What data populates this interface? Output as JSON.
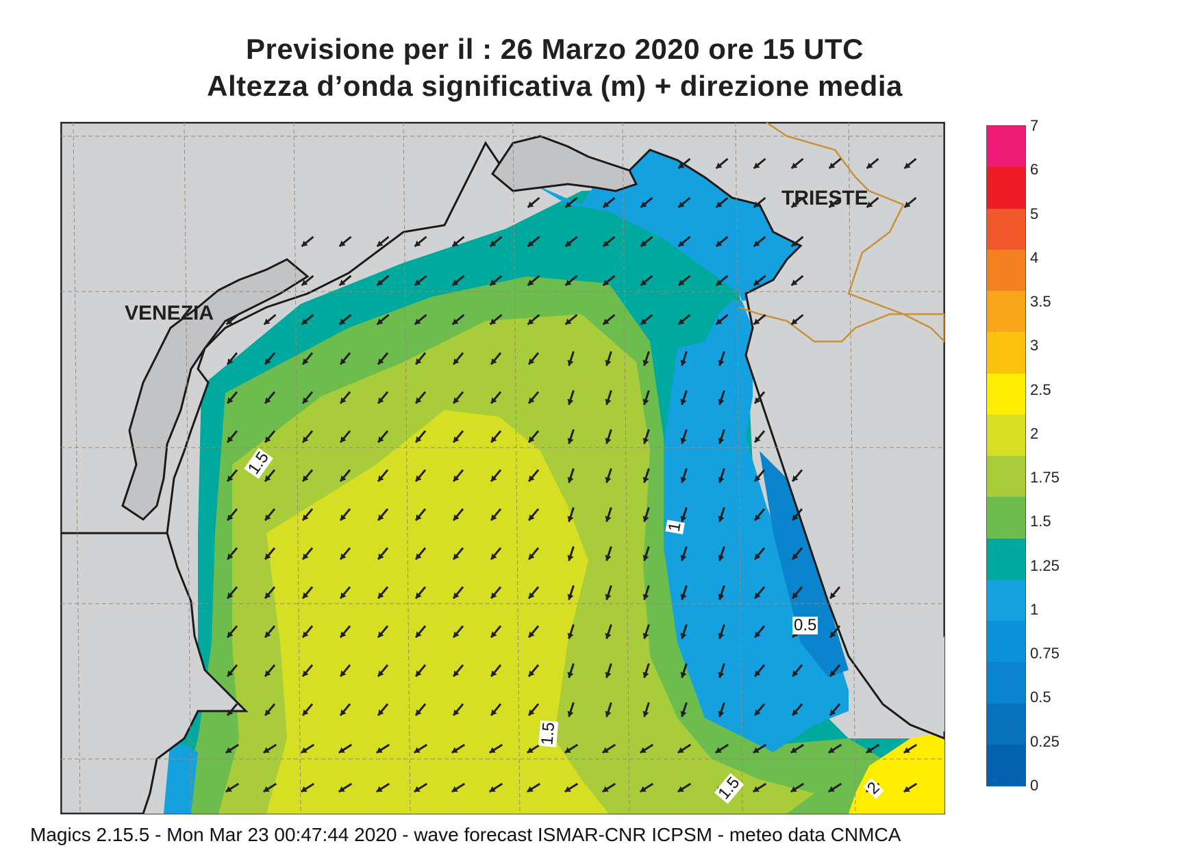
{
  "title": {
    "line1": "Previsione per il  :  26   Marzo   2020   ore 15 UTC",
    "line2": "Altezza d’onda significativa (m) + direzione media"
  },
  "map": {
    "cities": {
      "venezia": "VENEZIA",
      "trieste": "TRIESTE"
    },
    "contour_labels": [
      "1.5",
      "1",
      "0.5",
      "1.5",
      "1.5",
      "2"
    ],
    "colors": {
      "land": "#d1d2d3",
      "coast_line": "#1a1a1a",
      "border_line": "#c8913a",
      "grid_line": "#9a8a70",
      "arrow": "#231f20"
    },
    "wave_zones_m": [
      {
        "range": "0.5-0.75",
        "color": "#0a84cc"
      },
      {
        "range": "0.75-1",
        "color": "#15a0e0"
      },
      {
        "range": "1-1.25",
        "color": "#00a99d"
      },
      {
        "range": "1.25-1.5",
        "color": "#6cbd4e"
      },
      {
        "range": "1.5-1.75",
        "color": "#a9cc3a"
      },
      {
        "range": "1.75-2",
        "color": "#d6df23"
      },
      {
        "range": "2-2.5",
        "color": "#ffed00"
      }
    ],
    "mean_direction": "arrows pointing south-west"
  },
  "legend": {
    "items": [
      {
        "value": "7",
        "color": "#ec1c74"
      },
      {
        "value": "6",
        "color": "#ed1c24"
      },
      {
        "value": "5",
        "color": "#f1592a"
      },
      {
        "value": "4",
        "color": "#f58220"
      },
      {
        "value": "3.5",
        "color": "#faa61a"
      },
      {
        "value": "3",
        "color": "#fdc20e"
      },
      {
        "value": "2.5",
        "color": "#ffed00"
      },
      {
        "value": "2",
        "color": "#d6df23"
      },
      {
        "value": "1.75",
        "color": "#a9cc3a"
      },
      {
        "value": "1.5",
        "color": "#6cbd4e"
      },
      {
        "value": "1.25",
        "color": "#00a99d"
      },
      {
        "value": "1",
        "color": "#15a0e0"
      },
      {
        "value": "0.75",
        "color": "#0a92d8"
      },
      {
        "value": "0.5",
        "color": "#0a84cc"
      },
      {
        "value": "0.25",
        "color": "#0672bc"
      },
      {
        "value": "0",
        "color": "#0261ae"
      }
    ]
  },
  "footer": "Magics 2.15.5 - Mon Mar 23 00:47:44 2020 - wave forecast  ISMAR-CNR  ICPSM - meteo data   CNMCA"
}
